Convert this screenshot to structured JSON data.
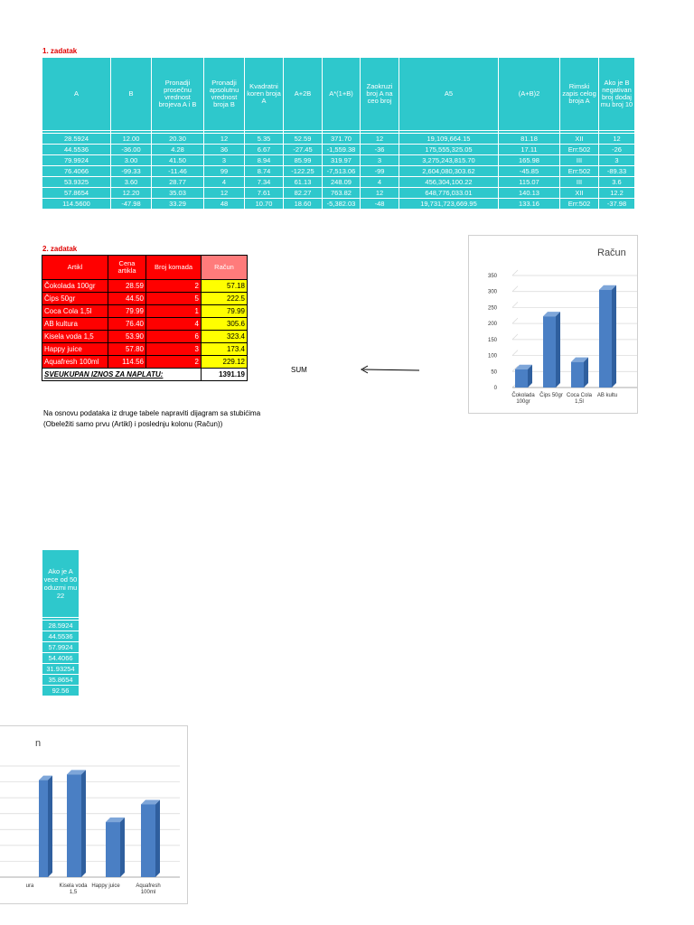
{
  "task1": {
    "title": "1. zadatak",
    "headers": [
      "A",
      "B",
      "Pronadji prosečnu vrednost brojeva A i B",
      "Pronadji apsolutnu vrednost broja B",
      "Kvadratni koren broja A",
      "A+2B",
      "A*(1+B)",
      "Zaokruzi broj A na ceo broj",
      "A5",
      "(A+B)2",
      "Rimski zapis celog broja A",
      "Ako je B negativan broj dodaj mu broj 10"
    ],
    "rows": [
      [
        "28.5924",
        "12.00",
        "20.30",
        "12",
        "5.35",
        "52.59",
        "371.70",
        "12",
        "19,109,664.15",
        "81.18",
        "XII",
        "12"
      ],
      [
        "44.5536",
        "-36.00",
        "4.28",
        "36",
        "6.67",
        "-27.45",
        "-1,559.38",
        "-36",
        "175,555,325.05",
        "17.11",
        "Err:502",
        "-26"
      ],
      [
        "79.9924",
        "3.00",
        "41.50",
        "3",
        "8.94",
        "85.99",
        "319.97",
        "3",
        "3,275,243,815.70",
        "165.98",
        "III",
        "3"
      ],
      [
        "76.4066",
        "-99.33",
        "-11.46",
        "99",
        "8.74",
        "-122.25",
        "-7,513.06",
        "-99",
        "2,604,080,303.62",
        "-45.85",
        "Err:502",
        "-89.33"
      ],
      [
        "53.9325",
        "3.60",
        "28.77",
        "4",
        "7.34",
        "61.13",
        "248.09",
        "4",
        "456,304,100.22",
        "115.07",
        "III",
        "3.6"
      ],
      [
        "57.8654",
        "12.20",
        "35.03",
        "12",
        "7.61",
        "82.27",
        "763.82",
        "12",
        "648,776,033.01",
        "140.13",
        "XII",
        "12.2"
      ],
      [
        "114.5600",
        "-47.98",
        "33.29",
        "48",
        "10.70",
        "18.60",
        "-5,382.03",
        "-48",
        "19,731,723,669.95",
        "133.16",
        "Err:502",
        "-37.98"
      ]
    ]
  },
  "task2": {
    "title": "2. zadatak",
    "headers": [
      "Artikl",
      "Cena artikla",
      "Broj komada",
      "Račun"
    ],
    "rows": [
      [
        "Čokolada 100gr",
        "28.59",
        "2",
        "57.18"
      ],
      [
        "Čips 50gr",
        "44.50",
        "5",
        "222.5"
      ],
      [
        "Coca Cola 1,5l",
        "79.99",
        "1",
        "79.99"
      ],
      [
        "AB kultura",
        "76.40",
        "4",
        "305.6"
      ],
      [
        "Kisela voda 1,5",
        "53.90",
        "6",
        "323.4"
      ],
      [
        "Happy juice",
        "57.80",
        "3",
        "173.4"
      ],
      [
        "Aquafresh 100ml",
        "114.56",
        "2",
        "229.12"
      ]
    ],
    "total_label": "SVEUKUPAN IZNOS ZA NAPLATU:",
    "total_value": "1391.19",
    "sum_label": "SUM",
    "instruction_line1": "Na osnovu podataka iz druge tabele napraviti dijagram sa stubićima",
    "instruction_line2": "(Obeležiti samo prvu (Artikl) i poslednju kolonu (Račun))"
  },
  "task3": {
    "header": "Ako je A vece od 50 oduzmi mu 22",
    "values": [
      "28.5924",
      "44.5536",
      "57.9924",
      "54.4066",
      "31.93254",
      "35.8654",
      "92.56"
    ]
  },
  "chart_data": {
    "type": "bar",
    "title": "Račun",
    "categories": [
      "Čokolada 100gr",
      "Čips 50gr",
      "Coca Cola 1,5l",
      "AB kultura",
      "Kisela voda 1,5",
      "Happy juice",
      "Aquafresh 100ml"
    ],
    "category_labels_page1": [
      "Čokolada|100gr",
      "Čips 50gr",
      "Coca Cola|1,5l",
      "AB kultu"
    ],
    "category_labels_page2": [
      "ura",
      "Kisela voda|1,5",
      "Happy juice",
      "Aquafresh|100ml"
    ],
    "values": [
      57.18,
      222.5,
      79.99,
      305.6,
      323.4,
      173.4,
      229.12
    ],
    "ylim": [
      0,
      350
    ],
    "yticks": [
      "0",
      "50",
      "100",
      "150",
      "200",
      "250",
      "300",
      "350"
    ],
    "grid": true,
    "bar_color": "#4a7fc4"
  }
}
